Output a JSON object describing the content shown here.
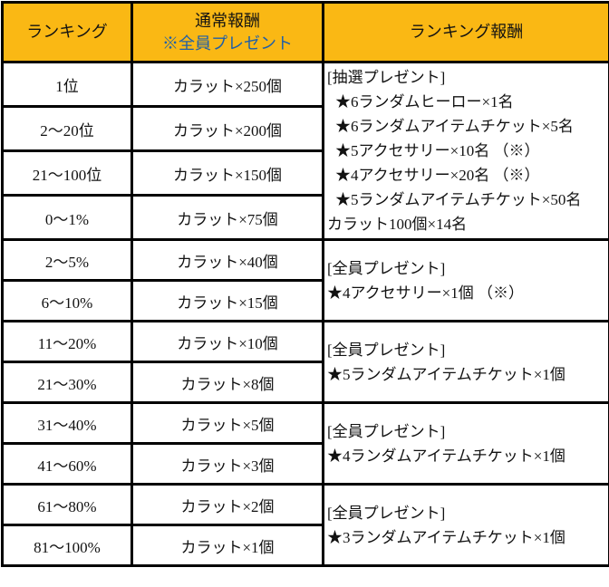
{
  "table": {
    "header": {
      "ranking": "ランキング",
      "normal_line1": "通常報酬",
      "normal_line2": "※全員プレゼント",
      "ranking_reward": "ランキング報酬"
    },
    "rows": [
      {
        "rank": "1位",
        "reward": "カラット×250個"
      },
      {
        "rank": "2〜20位",
        "reward": "カラット×200個"
      },
      {
        "rank": "21〜100位",
        "reward": "カラット×150個"
      },
      {
        "rank": "0〜1%",
        "reward": "カラット×75個"
      },
      {
        "rank": "2〜5%",
        "reward": "カラット×40個"
      },
      {
        "rank": "6〜10%",
        "reward": "カラット×15個"
      },
      {
        "rank": "11〜20%",
        "reward": "カラット×10個"
      },
      {
        "rank": "21〜30%",
        "reward": "カラット×8個"
      },
      {
        "rank": "31〜40%",
        "reward": "カラット×5個"
      },
      {
        "rank": "41〜60%",
        "reward": "カラット×3個"
      },
      {
        "rank": "61〜80%",
        "reward": "カラット×2個"
      },
      {
        "rank": "81〜100%",
        "reward": "カラット×1個"
      }
    ],
    "reward_sections": [
      {
        "lines": [
          "[抽選プレゼント]",
          "★6ランダムヒーロー×1名",
          "★6ランダムアイテムチケット×5名",
          "★5アクセサリー×10名 （※）",
          "★4アクセサリー×20名 （※）",
          "★5ランダムアイテムチケット×50名",
          "カラット100個×14名"
        ]
      },
      {
        "lines": [
          "[全員プレゼント]",
          "★4アクセサリー×1個 （※）"
        ]
      },
      {
        "lines": [
          "[全員プレゼント]",
          "★5ランダムアイテムチケット×1個"
        ]
      },
      {
        "lines": [
          "[全員プレゼント]",
          "★4ランダムアイテムチケット×1個"
        ]
      },
      {
        "lines": [
          "[全員プレゼント]",
          "★3ランダムアイテムチケット×1個"
        ]
      }
    ]
  },
  "colors": {
    "header_bg": "#FAB814",
    "header_note_blue": "#1F5FA8",
    "border": "#000000"
  }
}
